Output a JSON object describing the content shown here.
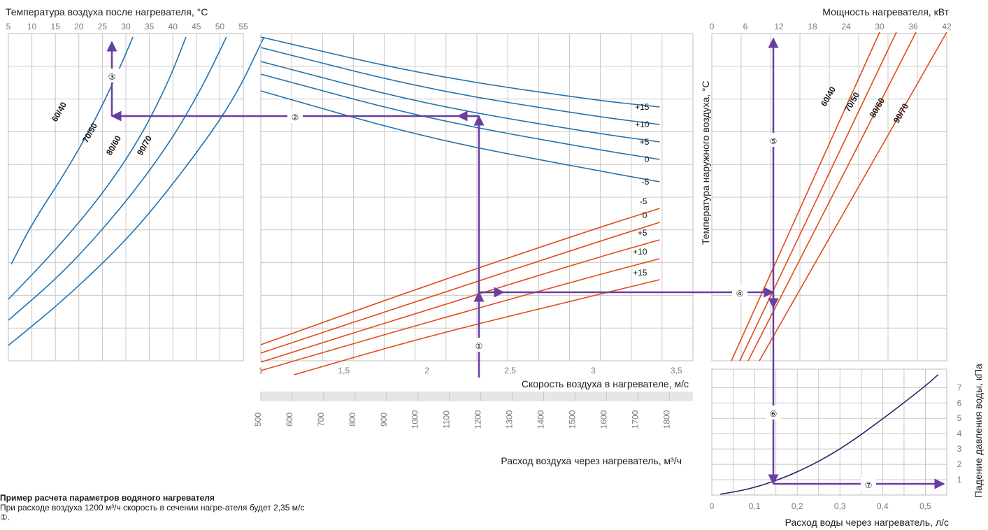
{
  "colors": {
    "grid": "#c8c8c8",
    "frame": "#bdbdbd",
    "blue": "#1f72b0",
    "red": "#e24a1a",
    "navy": "#2b2464",
    "purple": "#6a3ea1",
    "band": "#e6e6e6"
  },
  "note": {
    "title": "Пример расчета параметров водяного нагревателя",
    "text": "При расходе воздуха 1200 м³/ч скорость в сечении нагре-ателя будет 2,35 м/с ①."
  },
  "chart_data": [
    {
      "id": "left",
      "type": "line",
      "title": "Температура воздуха после нагревателя, °C",
      "x_ticks": [
        "5",
        "10",
        "15",
        "20",
        "25",
        "30",
        "35",
        "40",
        "45",
        "50",
        "55"
      ],
      "xlim": [
        5,
        55
      ],
      "series": [
        {
          "name": "60/40",
          "x": [
            0.6,
            5,
            12,
            18,
            23,
            26.5
          ],
          "y": [
            330,
            272,
            200,
            130,
            60,
            5
          ]
        },
        {
          "name": "70/50",
          "x": [
            0,
            10,
            20,
            28,
            34,
            37.8
          ],
          "y": [
            380,
            310,
            230,
            150,
            70,
            5
          ]
        },
        {
          "name": "80/60",
          "x": [
            0,
            12,
            24,
            34,
            41,
            46.4
          ],
          "y": [
            410,
            340,
            250,
            160,
            80,
            5
          ]
        },
        {
          "name": "90/70",
          "x": [
            0,
            12,
            26,
            38,
            48,
            54.4
          ],
          "y": [
            446,
            380,
            290,
            190,
            95,
            5
          ]
        }
      ],
      "marker": "③"
    },
    {
      "id": "mid",
      "type": "line",
      "xlabel": "Скорость воздуха в нагревателе, м/с",
      "x_ticks": [
        "1",
        "1,5",
        "2",
        "2,5",
        "3",
        "3,5"
      ],
      "xlim": [
        1,
        3.6
      ],
      "flow_label": "Расход воздуха через нагреватель, м³/ч",
      "flow_ticks": [
        "500",
        "600",
        "700",
        "800",
        "900",
        "1000",
        "1100",
        "1200",
        "1300",
        "1400",
        "1500",
        "1600",
        "1700",
        "1800"
      ],
      "blue_series": [
        {
          "name": "+15",
          "x": [
            1,
            2,
            3,
            3.4
          ],
          "y": [
            5,
            60,
            95,
            105
          ]
        },
        {
          "name": "+10",
          "x": [
            1,
            2,
            3,
            3.4
          ],
          "y": [
            20,
            80,
            118,
            130
          ]
        },
        {
          "name": "+5",
          "x": [
            1,
            2,
            3,
            3.4
          ],
          "y": [
            40,
            102,
            142,
            155
          ]
        },
        {
          "name": "0",
          "x": [
            1,
            2,
            3,
            3.4
          ],
          "y": [
            58,
            122,
            165,
            180
          ]
        },
        {
          "name": "-5",
          "x": [
            1,
            2,
            3,
            3.4
          ],
          "y": [
            82,
            150,
            195,
            212
          ]
        }
      ],
      "red_series": [
        {
          "name": "-5",
          "x": [
            1,
            2,
            3,
            3.4
          ],
          "y": [
            445,
            360,
            280,
            250
          ]
        },
        {
          "name": "0",
          "x": [
            1,
            2,
            3,
            3.4
          ],
          "y": [
            457,
            378,
            300,
            270
          ]
        },
        {
          "name": "+5",
          "x": [
            1,
            2,
            3,
            3.4
          ],
          "y": [
            470,
            395,
            322,
            295
          ]
        },
        {
          "name": "+10",
          "x": [
            1,
            2,
            3,
            3.4
          ],
          "y": [
            482,
            413,
            347,
            322
          ]
        },
        {
          "name": "+15",
          "x": [
            1.2,
            2,
            3,
            3.4
          ],
          "y": [
            488,
            433,
            375,
            352
          ]
        }
      ],
      "markers": [
        "①",
        "②"
      ]
    },
    {
      "id": "right",
      "type": "line",
      "title": "Мощность нагревателя, кВт",
      "ylabel": "Температура наружного воздуха, °C",
      "x_ticks": [
        "0",
        "6",
        "12",
        "18",
        "24",
        "30",
        "36",
        "42"
      ],
      "xlim": [
        0,
        42
      ],
      "series": [
        {
          "name": "60/40",
          "x": [
            3.5,
            30
          ],
          "y": [
            0,
            470
          ]
        },
        {
          "name": "70/50",
          "x": [
            5,
            33
          ],
          "y": [
            0,
            470
          ]
        },
        {
          "name": "80/60",
          "x": [
            6.5,
            36.5
          ],
          "y": [
            0,
            470
          ]
        },
        {
          "name": "90/70",
          "x": [
            8.5,
            42
          ],
          "y": [
            0,
            470
          ]
        }
      ],
      "markers": [
        "④",
        "⑤"
      ]
    },
    {
      "id": "bottom-right",
      "type": "line",
      "xlabel": "Расход воды через нагреватель, л/с",
      "ylabel": "Падение давления воды, кПа",
      "x_ticks": [
        "0",
        "0,1",
        "0,2",
        "0,3",
        "0,4",
        "0,5"
      ],
      "xlim": [
        0,
        0.55
      ],
      "y_ticks": [
        "1",
        "2",
        "3",
        "4",
        "5",
        "6",
        "7"
      ],
      "ylim": [
        0,
        8.2
      ],
      "series": [
        {
          "name": "",
          "x": [
            0.02,
            0.1,
            0.2,
            0.3,
            0.4,
            0.5,
            0.53
          ],
          "y": [
            0.05,
            0.45,
            1.45,
            2.95,
            4.95,
            7.1,
            7.85
          ]
        }
      ],
      "markers": [
        "⑥",
        "⑦"
      ]
    }
  ]
}
